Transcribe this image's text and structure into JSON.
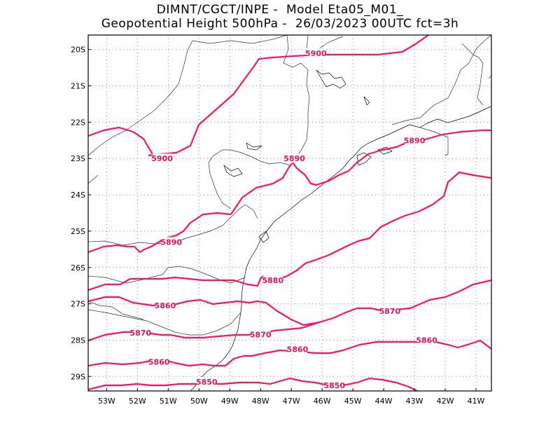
{
  "title": {
    "line1": "DIMNT/CGCT/INPE -  Model Eta05_M01_",
    "line2": "Geopotential Height 500hPa -  26/03/2023 00UTC fct=3h"
  },
  "axes": {
    "lon_labels": [
      "53W",
      "52W",
      "51W",
      "50W",
      "49W",
      "48W",
      "47W",
      "46W",
      "45W",
      "44W",
      "43W",
      "42W",
      "41W"
    ],
    "lat_labels": [
      "20S",
      "21S",
      "22S",
      "23S",
      "24S",
      "25S",
      "26S",
      "27S",
      "28S",
      "29S"
    ]
  },
  "colors": {
    "contour": "#ff1166",
    "label": "#e8125a"
  },
  "chart_data": {
    "type": "contour-map",
    "variable": "Geopotential Height 500hPa",
    "lon_range": [
      -53.6,
      -40.5
    ],
    "lat_range": [
      -29.4,
      -19.6
    ],
    "contour_labels": [
      {
        "text": "5900",
        "lon": -46.2,
        "lat": -20.1
      },
      {
        "text": "5900",
        "lon": -51.2,
        "lat": -23.0
      },
      {
        "text": "5890",
        "lon": -46.9,
        "lat": -23.0
      },
      {
        "text": "5890",
        "lon": -43.0,
        "lat": -22.5
      },
      {
        "text": "5890",
        "lon": -50.9,
        "lat": -25.3
      },
      {
        "text": "5880",
        "lon": -47.6,
        "lat": -26.35
      },
      {
        "text": "5870",
        "lon": -43.8,
        "lat": -27.2
      },
      {
        "text": "5870",
        "lon": -51.9,
        "lat": -27.8
      },
      {
        "text": "5870",
        "lon": -48.0,
        "lat": -27.85
      },
      {
        "text": "5860",
        "lon": -51.1,
        "lat": -27.05
      },
      {
        "text": "5860",
        "lon": -46.8,
        "lat": -28.25
      },
      {
        "text": "5860",
        "lon": -42.6,
        "lat": -28.0
      },
      {
        "text": "5860",
        "lon": -51.3,
        "lat": -28.6
      },
      {
        "text": "5850",
        "lon": -49.75,
        "lat": -29.15
      },
      {
        "text": "5850",
        "lon": -45.6,
        "lat": -29.25
      }
    ]
  }
}
